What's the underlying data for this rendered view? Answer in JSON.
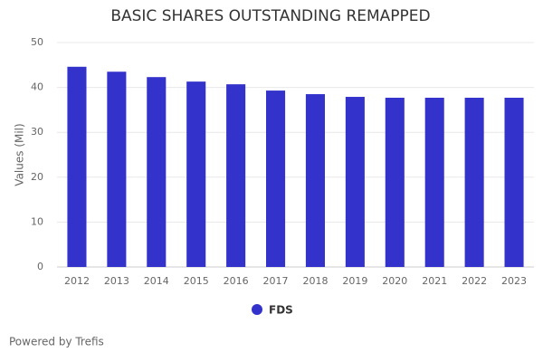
{
  "chart_data": {
    "type": "bar",
    "title": "BASIC SHARES OUTSTANDING REMAPPED",
    "ylabel": "Values (Mil)",
    "categories": [
      "2012",
      "2013",
      "2014",
      "2015",
      "2016",
      "2017",
      "2018",
      "2019",
      "2020",
      "2021",
      "2022",
      "2023"
    ],
    "series": [
      {
        "name": "FDS",
        "color": "#3333cc",
        "values": [
          44.6,
          43.5,
          42.3,
          41.3,
          40.7,
          39.3,
          38.5,
          37.9,
          37.7,
          37.7,
          37.7,
          37.7
        ]
      }
    ],
    "ylim": [
      0,
      50
    ],
    "yticks": [
      0,
      10,
      20,
      30,
      40,
      50
    ],
    "grid": true,
    "legend": "bottom"
  },
  "footer": "Powered by Trefis"
}
